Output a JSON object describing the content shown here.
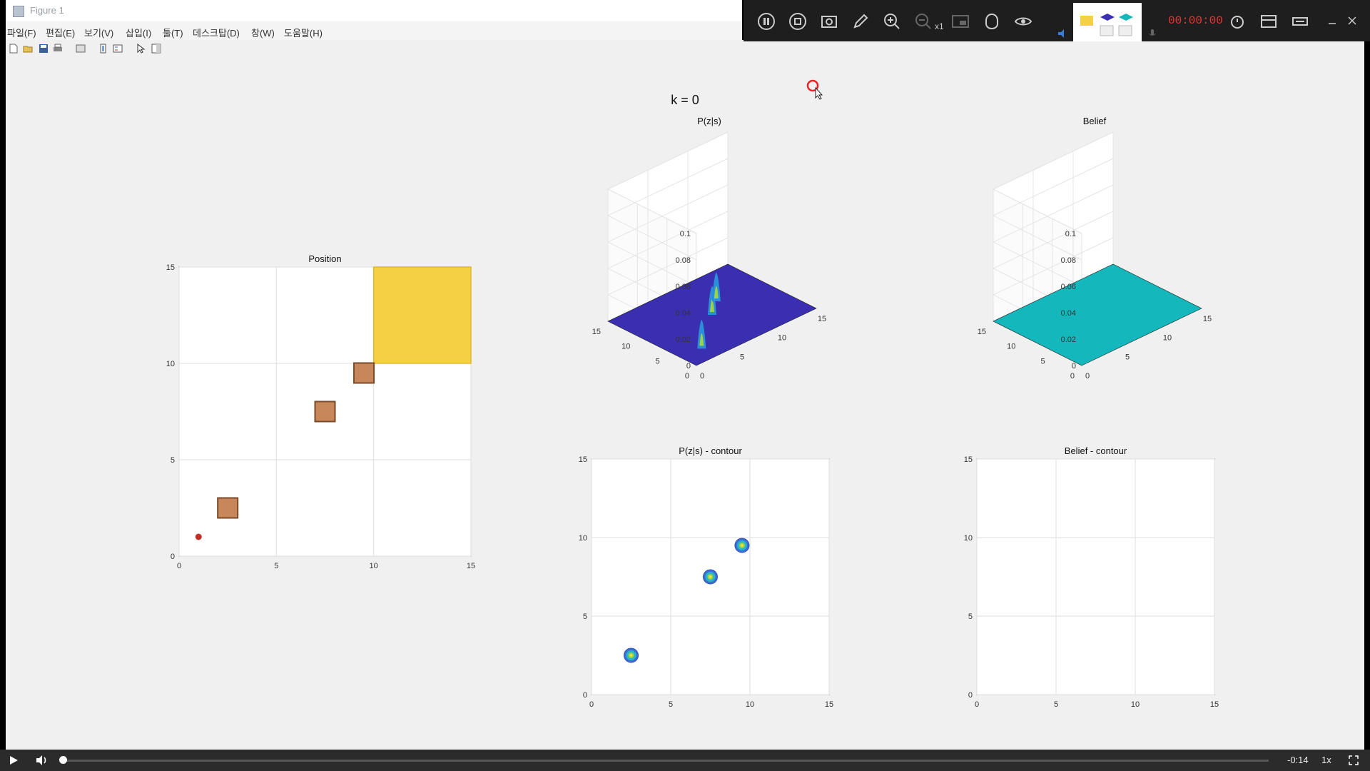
{
  "window": {
    "title": "Figure 1"
  },
  "menu": [
    {
      "label": "파일(F)"
    },
    {
      "label": "편집(E)"
    },
    {
      "label": "보기(V)"
    },
    {
      "label": "삽입(I)"
    },
    {
      "label": "툴(T)"
    },
    {
      "label": "데스크탑(D)"
    },
    {
      "label": "창(W)"
    },
    {
      "label": "도움말(H)"
    }
  ],
  "figure": {
    "suptitle": "k = 0"
  },
  "recorder": {
    "timer": "00:00:00",
    "zoom_label": "x1"
  },
  "player": {
    "remaining": "-0:14",
    "speed": "1x",
    "progress": 0.0
  },
  "chart_data": [
    {
      "type": "scatter",
      "title": "Position",
      "xlim": [
        0,
        15
      ],
      "ylim": [
        0,
        15
      ],
      "xticks": [
        0,
        5,
        10,
        15
      ],
      "yticks": [
        0,
        5,
        10,
        15
      ],
      "grid": true,
      "goal_region": {
        "x": [
          10,
          15
        ],
        "y": [
          10,
          15
        ],
        "color": "#f5d042"
      },
      "landmarks": [
        {
          "x": 2.5,
          "y": 2.5
        },
        {
          "x": 7.5,
          "y": 7.5
        },
        {
          "x": 9.5,
          "y": 9.5
        }
      ],
      "landmark_color": "#c8875a",
      "robot": {
        "x": 1,
        "y": 1,
        "color": "#c0302a"
      }
    },
    {
      "type": "surface",
      "title": "P(z|s)",
      "xlim": [
        0,
        15
      ],
      "ylim": [
        0,
        15
      ],
      "zlim": [
        0,
        0.1
      ],
      "zticks": [
        "0",
        "0.02",
        "0.04",
        "0.06",
        "0.08",
        "0.1"
      ],
      "xticks": [
        0,
        5,
        10,
        15
      ],
      "yticks": [
        0,
        5,
        10,
        15
      ],
      "surface_color": "#3a2fb0",
      "peaks": [
        {
          "x": 2.5,
          "y": 2.5
        },
        {
          "x": 7.5,
          "y": 7.5
        },
        {
          "x": 9.5,
          "y": 9.5
        }
      ]
    },
    {
      "type": "surface",
      "title": "Belief",
      "xlim": [
        0,
        15
      ],
      "ylim": [
        0,
        15
      ],
      "zlim": [
        0,
        0.1
      ],
      "zticks": [
        "0",
        "0.02",
        "0.04",
        "0.06",
        "0.08",
        "0.1"
      ],
      "xticks": [
        0,
        5,
        10,
        15
      ],
      "yticks": [
        0,
        5,
        10,
        15
      ],
      "surface_color": "#14b8bc",
      "peaks": []
    },
    {
      "type": "contour",
      "title": "P(z|s) - contour",
      "xlim": [
        0,
        15
      ],
      "ylim": [
        0,
        15
      ],
      "xticks": [
        0,
        5,
        10,
        15
      ],
      "yticks": [
        0,
        5,
        10,
        15
      ],
      "grid": true,
      "centers": [
        {
          "x": 2.5,
          "y": 2.5
        },
        {
          "x": 7.5,
          "y": 7.5
        },
        {
          "x": 9.5,
          "y": 9.5
        }
      ]
    },
    {
      "type": "contour",
      "title": "Belief - contour",
      "xlim": [
        0,
        15
      ],
      "ylim": [
        0,
        15
      ],
      "xticks": [
        0,
        5,
        10,
        15
      ],
      "yticks": [
        0,
        5,
        10,
        15
      ],
      "grid": true,
      "centers": []
    }
  ]
}
